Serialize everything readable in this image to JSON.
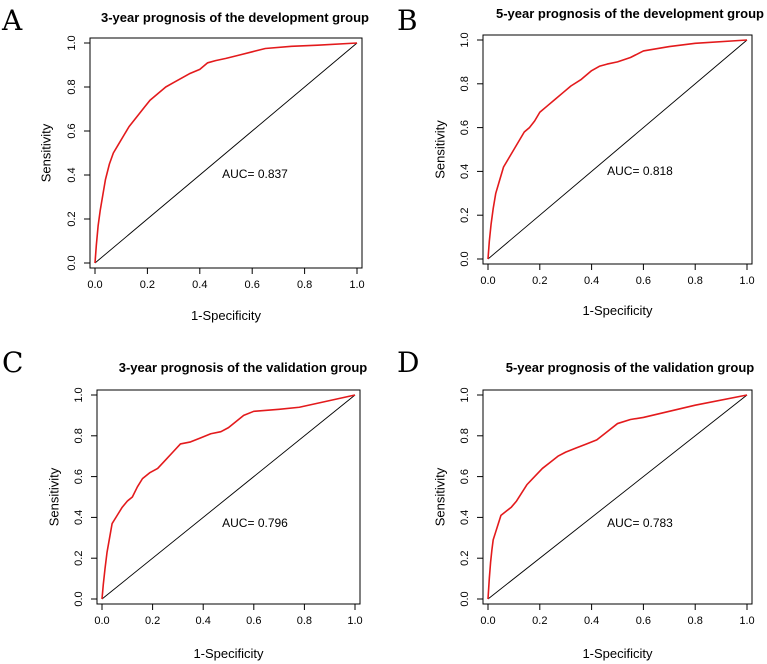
{
  "figure": {
    "colors": {
      "roc": "#e31a1c",
      "axes": "#000000"
    }
  },
  "chart_data": [
    {
      "type": "line",
      "panel": "A",
      "title": "3-year prognosis of the development group",
      "xlabel": "1-Specificity",
      "ylabel": "Sensitivity",
      "xlim": [
        0,
        1
      ],
      "ylim": [
        0,
        1
      ],
      "xticks": [
        "0.0",
        "0.2",
        "0.4",
        "0.6",
        "0.8",
        "1.0"
      ],
      "yticks": [
        "0.0",
        "0.2",
        "0.4",
        "0.6",
        "0.8",
        "1.0"
      ],
      "auc_label": "AUC= 0.837",
      "reference_line": [
        [
          0,
          0
        ],
        [
          1,
          1
        ]
      ],
      "series": [
        {
          "name": "ROC",
          "x": [
            0,
            0.005,
            0.012,
            0.02,
            0.03,
            0.04,
            0.055,
            0.07,
            0.09,
            0.11,
            0.13,
            0.15,
            0.17,
            0.19,
            0.21,
            0.24,
            0.27,
            0.3,
            0.33,
            0.36,
            0.4,
            0.43,
            0.46,
            0.5,
            0.55,
            0.6,
            0.65,
            0.75,
            0.85,
            1.0
          ],
          "y": [
            0,
            0.08,
            0.17,
            0.24,
            0.31,
            0.38,
            0.45,
            0.5,
            0.54,
            0.58,
            0.62,
            0.65,
            0.68,
            0.71,
            0.74,
            0.77,
            0.8,
            0.82,
            0.84,
            0.86,
            0.88,
            0.91,
            0.92,
            0.93,
            0.945,
            0.96,
            0.975,
            0.985,
            0.99,
            1.0
          ]
        }
      ]
    },
    {
      "type": "line",
      "panel": "B",
      "title": "5-year prognosis of the development group",
      "xlabel": "1-Specificity",
      "ylabel": "Sensitivity",
      "xlim": [
        0,
        1
      ],
      "ylim": [
        0,
        1
      ],
      "xticks": [
        "0.0",
        "0.2",
        "0.4",
        "0.6",
        "0.8",
        "1.0"
      ],
      "yticks": [
        "0.0",
        "0.2",
        "0.4",
        "0.6",
        "0.8",
        "1.0"
      ],
      "auc_label": "AUC= 0.818",
      "reference_line": [
        [
          0,
          0
        ],
        [
          1,
          1
        ]
      ],
      "series": [
        {
          "name": "ROC",
          "x": [
            0,
            0.005,
            0.012,
            0.02,
            0.03,
            0.045,
            0.06,
            0.08,
            0.1,
            0.12,
            0.14,
            0.16,
            0.18,
            0.2,
            0.23,
            0.26,
            0.29,
            0.32,
            0.36,
            0.4,
            0.43,
            0.46,
            0.5,
            0.55,
            0.6,
            0.7,
            0.8,
            1.0
          ],
          "y": [
            0,
            0.08,
            0.16,
            0.23,
            0.3,
            0.36,
            0.42,
            0.46,
            0.5,
            0.54,
            0.58,
            0.6,
            0.63,
            0.67,
            0.7,
            0.73,
            0.76,
            0.79,
            0.82,
            0.86,
            0.88,
            0.89,
            0.9,
            0.92,
            0.95,
            0.97,
            0.985,
            1.0
          ]
        }
      ]
    },
    {
      "type": "line",
      "panel": "C",
      "title": "3-year prognosis of the validation group",
      "xlabel": "1-Specificity",
      "ylabel": "Sensitivity",
      "xlim": [
        0,
        1
      ],
      "ylim": [
        0,
        1
      ],
      "xticks": [
        "0.0",
        "0.2",
        "0.4",
        "0.6",
        "0.8",
        "1.0"
      ],
      "yticks": [
        "0.0",
        "0.2",
        "0.4",
        "0.6",
        "0.8",
        "1.0"
      ],
      "auc_label": "AUC= 0.796",
      "reference_line": [
        [
          0,
          0
        ],
        [
          1,
          1
        ]
      ],
      "series": [
        {
          "name": "ROC",
          "x": [
            0,
            0.005,
            0.012,
            0.02,
            0.03,
            0.04,
            0.06,
            0.08,
            0.1,
            0.12,
            0.14,
            0.16,
            0.19,
            0.22,
            0.25,
            0.28,
            0.31,
            0.35,
            0.39,
            0.43,
            0.47,
            0.5,
            0.53,
            0.56,
            0.6,
            0.7,
            0.78,
            1.0
          ],
          "y": [
            0,
            0.07,
            0.15,
            0.23,
            0.3,
            0.37,
            0.41,
            0.45,
            0.48,
            0.5,
            0.55,
            0.59,
            0.62,
            0.64,
            0.68,
            0.72,
            0.76,
            0.77,
            0.79,
            0.81,
            0.82,
            0.84,
            0.87,
            0.9,
            0.92,
            0.93,
            0.94,
            1.0
          ]
        }
      ]
    },
    {
      "type": "line",
      "panel": "D",
      "title": "5-year prognosis of the validation group",
      "xlabel": "1-Specificity",
      "ylabel": "Sensitivity",
      "xlim": [
        0,
        1
      ],
      "ylim": [
        0,
        1
      ],
      "xticks": [
        "0.0",
        "0.2",
        "0.4",
        "0.6",
        "0.8",
        "1.0"
      ],
      "yticks": [
        "0.0",
        "0.2",
        "0.4",
        "0.6",
        "0.8",
        "1.0"
      ],
      "auc_label": "AUC= 0.783",
      "reference_line": [
        [
          0,
          0
        ],
        [
          1,
          1
        ]
      ],
      "series": [
        {
          "name": "ROC",
          "x": [
            0,
            0.005,
            0.01,
            0.015,
            0.02,
            0.03,
            0.04,
            0.05,
            0.07,
            0.09,
            0.11,
            0.13,
            0.15,
            0.18,
            0.21,
            0.24,
            0.27,
            0.3,
            0.34,
            0.38,
            0.42,
            0.46,
            0.5,
            0.55,
            0.6,
            0.7,
            0.8,
            1.0
          ],
          "y": [
            0,
            0.1,
            0.18,
            0.24,
            0.29,
            0.33,
            0.37,
            0.41,
            0.43,
            0.45,
            0.48,
            0.52,
            0.56,
            0.6,
            0.64,
            0.67,
            0.7,
            0.72,
            0.74,
            0.76,
            0.78,
            0.82,
            0.86,
            0.88,
            0.89,
            0.92,
            0.95,
            1.0
          ]
        }
      ]
    }
  ]
}
